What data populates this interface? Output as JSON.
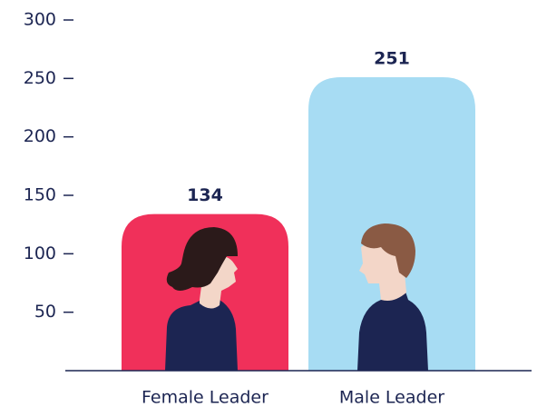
{
  "chart_data": {
    "type": "bar",
    "categories": [
      "Female Leader",
      "Male Leader"
    ],
    "values": [
      134,
      251
    ],
    "colors": [
      "#f0305a",
      "#a7dcf3"
    ],
    "ylim": [
      0,
      300
    ],
    "yticks": [
      50,
      100,
      150,
      200,
      250,
      300
    ]
  }
}
